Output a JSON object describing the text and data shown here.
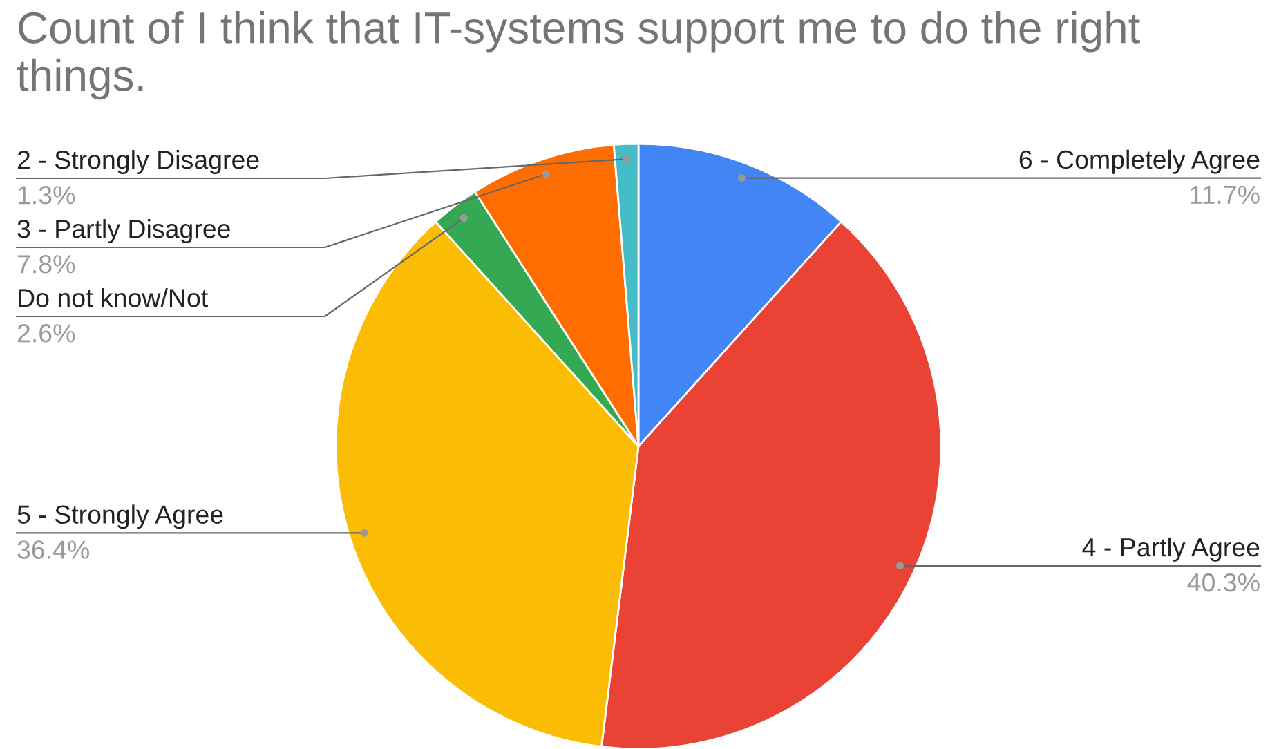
{
  "chart_data": {
    "type": "pie",
    "title": "Count of I think that IT-systems support me to do the right things.",
    "categories": [
      "6 - Completely Agree",
      "4 - Partly Agree",
      "5 - Strongly Agree",
      "Do not know/Not",
      "3 - Partly Disagree",
      "2 - Strongly Disagree"
    ],
    "values": [
      11.7,
      40.3,
      36.4,
      2.6,
      7.8,
      1.3
    ],
    "colors": [
      "#4285f4",
      "#ea4335",
      "#fbbc04",
      "#34a853",
      "#ff6d01",
      "#46bdc6"
    ],
    "value_labels": [
      "11.7%",
      "40.3%",
      "36.4%",
      "2.6%",
      "7.8%",
      "1.3%"
    ]
  }
}
